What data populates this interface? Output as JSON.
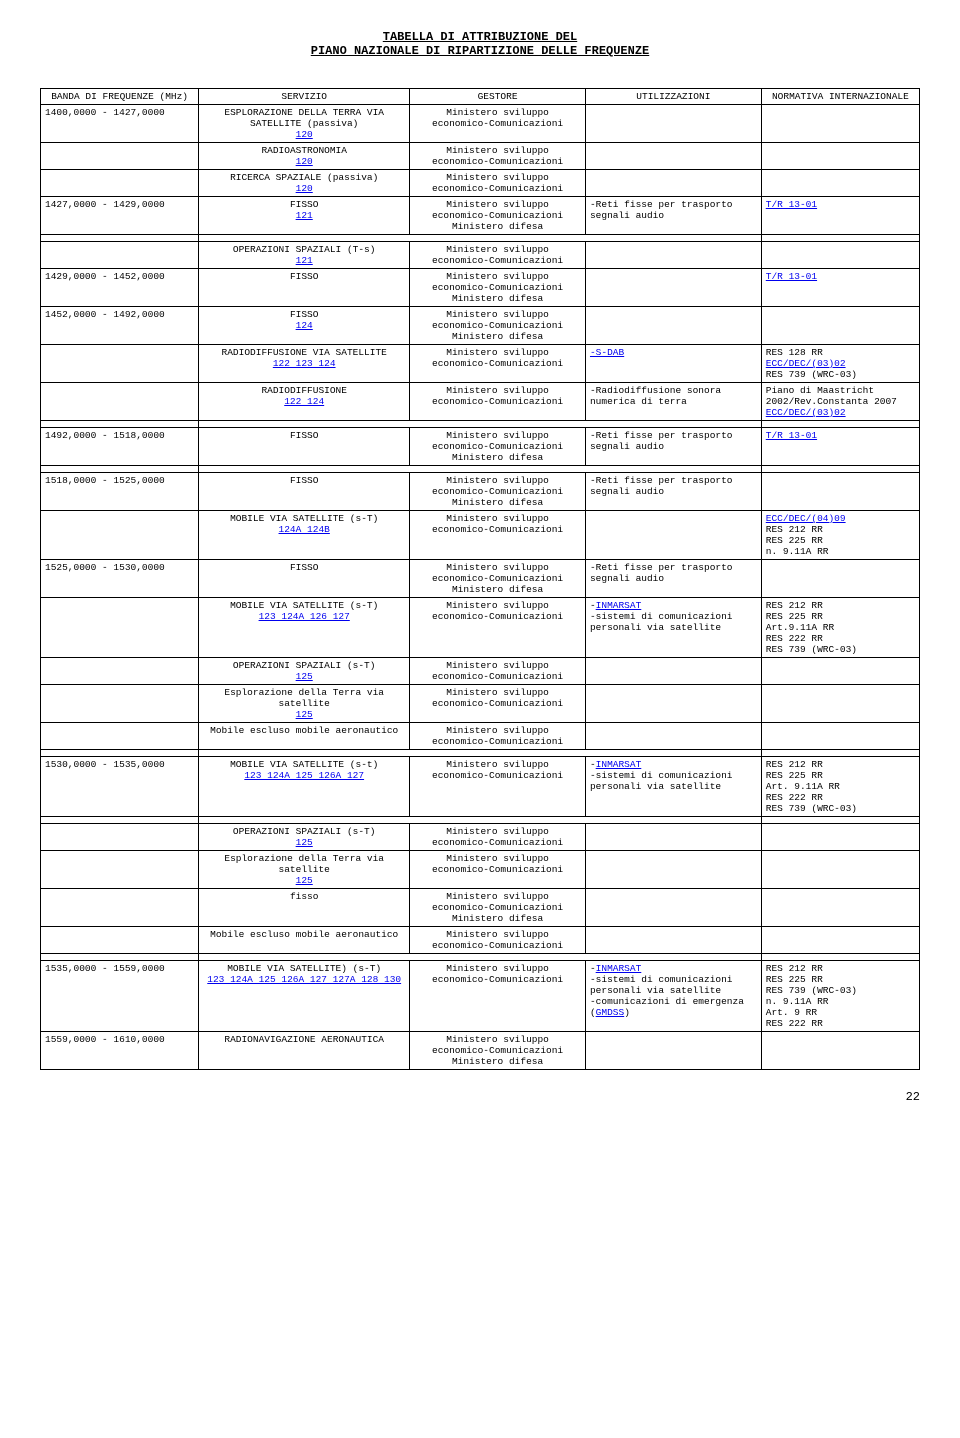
{
  "title_line1": "TABELLA DI ATTRIBUZIONE DEL",
  "title_line2": "PIANO NAZIONALE DI RIPARTIZIONE DELLE FREQUENZE",
  "headers": {
    "band": "BANDA DI FREQUENZE (MHz)",
    "service": "SERVIZIO",
    "manager": "GESTORE",
    "use": "UTILIZZAZIONI",
    "norm": "NORMATIVA INTERNAZIONALE"
  },
  "ms": "Ministero sviluppo economico-Comunicazioni",
  "md": "Ministero difesa",
  "rows": [
    {
      "band": "1400,0000 - 1427,0000",
      "service": "ESPLORAZIONE DELLA TERRA VIA SATELLITE (passiva)",
      "svc_note": "120",
      "mgr": "Ministero sviluppo economico-Comunicazioni",
      "use": "",
      "norm": ""
    },
    {
      "band": "",
      "service": "RADIOASTRONOMIA",
      "svc_note": "120",
      "mgr": "Ministero sviluppo economico-Comunicazioni",
      "use": "",
      "norm": ""
    },
    {
      "band": "",
      "service": "RICERCA SPAZIALE (passiva)",
      "svc_note": "120",
      "mgr": "Ministero sviluppo economico-Comunicazioni",
      "use": "",
      "norm": ""
    },
    {
      "band": "1427,0000 - 1429,0000",
      "service": "FISSO",
      "svc_note": "121",
      "mgr": "Ministero sviluppo economico-Comunicazioni Ministero difesa",
      "use": "-Reti fisse per trasporto segnali audio",
      "norm_link": "T/R 13-01"
    },
    {
      "band": "",
      "service": "OPERAZIONI SPAZIALI  (T-s)",
      "svc_note": "121",
      "mgr": "Ministero sviluppo economico-Comunicazioni",
      "use": "",
      "norm": ""
    },
    {
      "band": "1429,0000 - 1452,0000",
      "service": "FISSO",
      "svc_note": "",
      "mgr": "Ministero sviluppo economico-Comunicazioni Ministero difesa",
      "use": "",
      "norm_link": "T/R 13-01"
    },
    {
      "band": "1452,0000 - 1492,0000",
      "service": "FISSO",
      "svc_note": "124",
      "mgr": "Ministero sviluppo economico-Comunicazioni Ministero difesa",
      "use": "",
      "norm": ""
    },
    {
      "band": "",
      "service": "RADIODIFFUSIONE VIA SATELLITE",
      "svc_note": "122  123  124",
      "mgr": "Ministero sviluppo economico-Comunicazioni",
      "use_link": "-S-DAB",
      "norm": "RES 128 RR\nECC/DEC/(03)02\nRES 739 (WRC-03)",
      "norm_links": [
        "ECC/DEC/(03)02"
      ]
    },
    {
      "band": "",
      "service": "RADIODIFFUSIONE",
      "svc_note": "122  124",
      "mgr": "Ministero sviluppo economico-Comunicazioni",
      "use": "-Radiodiffusione sonora numerica di terra",
      "norm": "Piano di Maastricht 2002/Rev.Constanta 2007\nECC/DEC/(03)02",
      "norm_links": [
        "ECC/DEC/(03)02"
      ]
    },
    {
      "band": "1492,0000 - 1518,0000",
      "service": "FISSO",
      "svc_note": "",
      "mgr": "Ministero sviluppo economico-Comunicazioni Ministero difesa",
      "use": "-Reti fisse per trasporto segnali audio",
      "norm_link": "T/R 13-01"
    },
    {
      "band": "1518,0000 - 1525,0000",
      "service": "FISSO",
      "svc_note": "",
      "mgr": "Ministero sviluppo economico-Comunicazioni Ministero difesa",
      "use": "-Reti fisse per trasporto segnali audio",
      "norm": ""
    },
    {
      "band": "",
      "service": "MOBILE  VIA SATELLITE (s-T)",
      "svc_note": "124A 124B",
      "mgr": "Ministero sviluppo economico-Comunicazioni",
      "use": "",
      "norm": "ECC/DEC/(04)09\nRES 212 RR\nRES 225 RR\nn. 9.11A RR",
      "norm_links": [
        "ECC/DEC/(04)09"
      ]
    },
    {
      "band": "1525,0000 - 1530,0000",
      "service": "FISSO",
      "svc_note": "",
      "mgr": "Ministero sviluppo economico-Comunicazioni Ministero difesa",
      "use": "-Reti fisse per trasporto segnali audio",
      "norm": ""
    },
    {
      "band": "",
      "service": "MOBILE  VIA SATELLITE (s-T)",
      "svc_note": "123 124A 126 127",
      "mgr": "Ministero sviluppo economico-Comunicazioni",
      "use": "-INMARSAT\n-sistemi di comunicazioni personali via satellite",
      "use_links": [
        "INMARSAT"
      ],
      "norm": "RES 212 RR\nRES 225 RR\nArt.9.11A RR\nRES 222 RR\nRES 739 (WRC-03)"
    },
    {
      "band": "",
      "service": "OPERAZIONI SPAZIALI (s-T)",
      "svc_note": "125",
      "mgr": "Ministero sviluppo economico-Comunicazioni",
      "use": "",
      "norm": ""
    },
    {
      "band": "",
      "service": "Esplorazione della Terra via satellite",
      "svc_note": "125",
      "mgr": "Ministero sviluppo economico-Comunicazioni",
      "use": "",
      "norm": ""
    },
    {
      "band": "",
      "service": "Mobile escluso mobile aeronautico",
      "svc_note": "",
      "mgr": "Ministero sviluppo economico-Comunicazioni",
      "use": "",
      "norm": ""
    },
    {
      "band": "1530,0000 - 1535,0000",
      "service": "MOBILE VIA SATELLITE (s-t)",
      "svc_note": "123 124A 125 126A  127",
      "mgr": "Ministero sviluppo economico-Comunicazioni",
      "use": "-INMARSAT\n-sistemi di comunicazioni personali via satellite",
      "use_links": [
        "INMARSAT"
      ],
      "norm": "RES 212 RR\nRES 225 RR\nArt. 9.11A RR\nRES 222 RR\nRES 739 (WRC-03)"
    },
    {
      "band": "",
      "service": "OPERAZIONI SPAZIALI (s-T)",
      "svc_note": "125",
      "mgr": "Ministero sviluppo economico-Comunicazioni",
      "use": "",
      "norm": ""
    },
    {
      "band": "",
      "service": "Esplorazione della Terra via satellite",
      "svc_note": "125",
      "mgr": "Ministero sviluppo economico-Comunicazioni",
      "use": "",
      "norm": ""
    },
    {
      "band": "",
      "service": "fisso",
      "svc_note": "",
      "mgr": "Ministero sviluppo economico-Comunicazioni Ministero difesa",
      "use": "",
      "norm": ""
    },
    {
      "band": "",
      "service": "Mobile escluso mobile aeronautico",
      "svc_note": "",
      "mgr": "Ministero sviluppo economico-Comunicazioni",
      "use": "",
      "norm": ""
    },
    {
      "band": "1535,0000 - 1559,0000",
      "service": "MOBILE VIA SATELLITE) (s-T)",
      "svc_note": "123 124A 125 126A 127 127A 128 130",
      "mgr": "Ministero sviluppo economico-Comunicazioni",
      "use": "-INMARSAT\n-sistemi di comunicazioni personali via satellite\n-comunicazioni di emergenza (GMDSS)",
      "use_links": [
        "INMARSAT",
        "GMDSS"
      ],
      "norm": "RES 212 RR\nRES 225 RR\nRES 739 (WRC-03)\nn. 9.11A RR\nArt. 9 RR\nRES 222 RR"
    },
    {
      "band": "1559,0000 - 1610,0000",
      "service": "RADIONAVIGAZIONE AERONAUTICA",
      "svc_note": "",
      "mgr": "Ministero sviluppo economico-Comunicazioni Ministero difesa",
      "use": "",
      "norm": ""
    }
  ],
  "breaks_after": [
    3,
    8,
    9,
    16,
    17,
    21
  ],
  "page_num": "22"
}
